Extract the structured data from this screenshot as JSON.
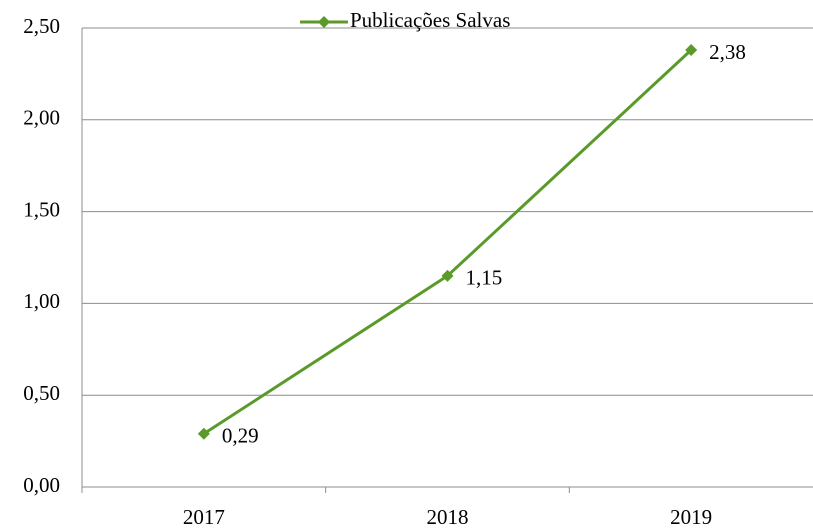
{
  "chart_data": {
    "type": "line",
    "categories": [
      "2017",
      "2018",
      "2019"
    ],
    "series": [
      {
        "name": "Publicações Salvas",
        "color": "#5a9a2a",
        "values": [
          0.29,
          1.15,
          2.38
        ],
        "value_labels": [
          "0,29",
          "1,15",
          "2,38"
        ]
      }
    ],
    "ylim": [
      0,
      2.5
    ],
    "yticks": [
      {
        "value": 0,
        "label": "0,00"
      },
      {
        "value": 0.5,
        "label": "0,50"
      },
      {
        "value": 1,
        "label": "1,00"
      },
      {
        "value": 1.5,
        "label": "1,50"
      },
      {
        "value": 2,
        "label": "2,00"
      },
      {
        "value": 2.5,
        "label": "2,50"
      }
    ],
    "grid": true,
    "legend": "top"
  }
}
